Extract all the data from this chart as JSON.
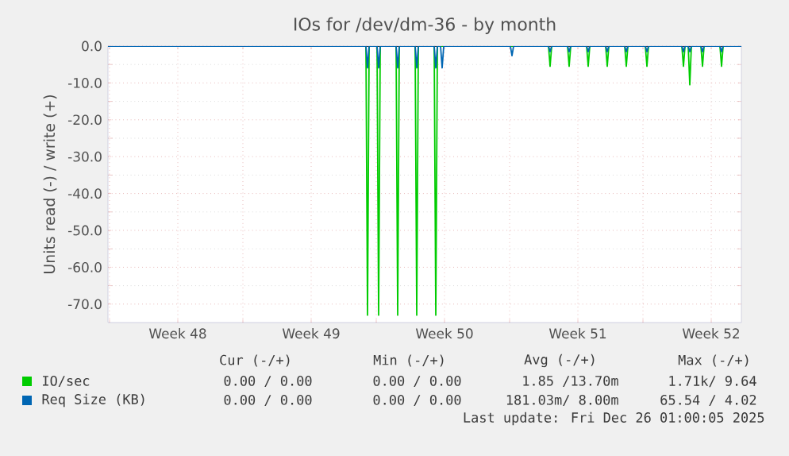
{
  "chart_data": {
    "type": "line",
    "title": "IOs for /dev/dm-36 - by month",
    "ylabel": "Units read (-) / write (+)",
    "xlim": [
      "2025-11-22T19:00",
      "2025-12-26T01:00"
    ],
    "xticks": [
      {
        "value": "2025-11-22T21:00",
        "label": null
      },
      {
        "value": "2025-11-26T11:00",
        "label": "Week 48"
      },
      {
        "value": "2025-11-29T21:00",
        "label": null
      },
      {
        "value": "2025-12-03T11:00",
        "label": "Week 49"
      },
      {
        "value": "2025-12-06T21:00",
        "label": null
      },
      {
        "value": "2025-12-10T11:00",
        "label": "Week 50"
      },
      {
        "value": "2025-12-13T21:00",
        "label": null
      },
      {
        "value": "2025-12-17T11:00",
        "label": "Week 51"
      },
      {
        "value": "2025-12-20T21:00",
        "label": null
      },
      {
        "value": "2025-12-24T11:00",
        "label": "Week 52"
      }
    ],
    "ylim": [
      -75,
      0
    ],
    "yticks": [
      {
        "value": 0,
        "label": "0.0"
      },
      {
        "value": -10,
        "label": "-10.0"
      },
      {
        "value": -20,
        "label": "-20.0"
      },
      {
        "value": -30,
        "label": "-30.0"
      },
      {
        "value": -40,
        "label": "-40.0"
      },
      {
        "value": -50,
        "label": "-50.0"
      },
      {
        "value": -60,
        "label": "-60.0"
      },
      {
        "value": -70,
        "label": "-70.0"
      }
    ],
    "grid": true,
    "legend": "bottom",
    "series": [
      {
        "name": "IO/sec",
        "color": "#00cc00",
        "x": [
          "2025-11-22T19:00",
          "2025-12-06T08:00",
          "2025-12-06T10:00",
          "2025-12-06T12:00",
          "2025-12-06T22:00",
          "2025-12-07T00:00",
          "2025-12-07T02:00",
          "2025-12-07T22:00",
          "2025-12-08T00:00",
          "2025-12-08T02:00",
          "2025-12-08T22:00",
          "2025-12-09T00:00",
          "2025-12-09T02:00",
          "2025-12-09T22:00",
          "2025-12-10T00:00",
          "2025-12-10T02:00",
          "2025-12-15T22:00",
          "2025-12-16T00:00",
          "2025-12-16T02:00",
          "2025-12-16T22:00",
          "2025-12-17T00:00",
          "2025-12-17T02:00",
          "2025-12-17T22:00",
          "2025-12-18T00:00",
          "2025-12-18T02:00",
          "2025-12-18T22:00",
          "2025-12-19T00:00",
          "2025-12-19T02:00",
          "2025-12-19T22:00",
          "2025-12-20T00:00",
          "2025-12-20T02:00",
          "2025-12-21T00:00",
          "2025-12-21T02:00",
          "2025-12-21T04:00",
          "2025-12-22T22:00",
          "2025-12-23T00:00",
          "2025-12-23T02:00",
          "2025-12-23T06:00",
          "2025-12-23T08:00",
          "2025-12-23T10:00",
          "2025-12-23T22:00",
          "2025-12-24T00:00",
          "2025-12-24T02:00",
          "2025-12-24T22:00",
          "2025-12-25T00:00",
          "2025-12-25T02:00",
          "2025-12-26T01:00"
        ],
        "values": [
          0,
          0,
          -73,
          0,
          0,
          -73,
          0,
          0,
          -73,
          0,
          0,
          -73,
          0,
          0,
          -73,
          0,
          0,
          -5.5,
          0,
          0,
          -5.5,
          0,
          0,
          -5.5,
          0,
          0,
          -5.5,
          0,
          0,
          -5.5,
          0,
          0,
          -5.5,
          0,
          0,
          -5.5,
          0,
          0,
          -10.5,
          0,
          0,
          -5.5,
          0,
          0,
          -5.5,
          0,
          0
        ]
      },
      {
        "name": "Req Size (KB)",
        "color": "#0066b3",
        "x": [
          "2025-11-22T19:00",
          "2025-12-06T08:00",
          "2025-12-06T10:00",
          "2025-12-06T12:00",
          "2025-12-06T22:00",
          "2025-12-07T00:00",
          "2025-12-07T02:00",
          "2025-12-07T22:00",
          "2025-12-08T00:00",
          "2025-12-08T02:00",
          "2025-12-08T22:00",
          "2025-12-09T00:00",
          "2025-12-09T02:00",
          "2025-12-09T22:00",
          "2025-12-10T00:00",
          "2025-12-10T02:00",
          "2025-12-10T06:00",
          "2025-12-10T08:00",
          "2025-12-10T10:00",
          "2025-12-13T22:00",
          "2025-12-14T00:00",
          "2025-12-14T02:00",
          "2025-12-15T22:00",
          "2025-12-16T00:00",
          "2025-12-16T02:00",
          "2025-12-16T22:00",
          "2025-12-17T00:00",
          "2025-12-17T02:00",
          "2025-12-17T22:00",
          "2025-12-18T00:00",
          "2025-12-18T02:00",
          "2025-12-18T22:00",
          "2025-12-19T00:00",
          "2025-12-19T02:00",
          "2025-12-19T22:00",
          "2025-12-20T00:00",
          "2025-12-20T02:00",
          "2025-12-21T00:00",
          "2025-12-21T02:00",
          "2025-12-21T04:00",
          "2025-12-22T22:00",
          "2025-12-23T00:00",
          "2025-12-23T02:00",
          "2025-12-23T06:00",
          "2025-12-23T08:00",
          "2025-12-23T10:00",
          "2025-12-23T22:00",
          "2025-12-24T00:00",
          "2025-12-24T02:00",
          "2025-12-24T22:00",
          "2025-12-25T00:00",
          "2025-12-25T02:00",
          "2025-12-26T01:00"
        ],
        "values": [
          0,
          0,
          -5.9,
          0,
          0,
          -5.9,
          0,
          0,
          -5.9,
          0,
          0,
          -5.9,
          0,
          0,
          -5.9,
          0,
          0,
          -5.9,
          0,
          0,
          -2.6,
          0,
          0,
          -1.5,
          0,
          0,
          -1.5,
          0,
          0,
          -1.5,
          0,
          0,
          -1.5,
          0,
          0,
          -1.5,
          0,
          0,
          -1.5,
          0,
          0,
          -1.5,
          0,
          0,
          -1.5,
          0,
          0,
          -1.5,
          0,
          0,
          -1.5,
          0,
          0
        ]
      }
    ],
    "annotations": [
      "Cur (-/+)",
      "Min (-/+)",
      "Avg (-/+)",
      "Max (-/+)",
      "0.00 / 0.00",
      "0.00 / 0.00",
      "1.85 /13.70m",
      "1.71k/ 9.64",
      "0.00 / 0.00",
      "0.00 / 0.00",
      "181.03m/ 8.00m",
      "65.54 / 4.02",
      "Last update: Fri Dec 26 01:00:05 2025"
    ]
  }
}
